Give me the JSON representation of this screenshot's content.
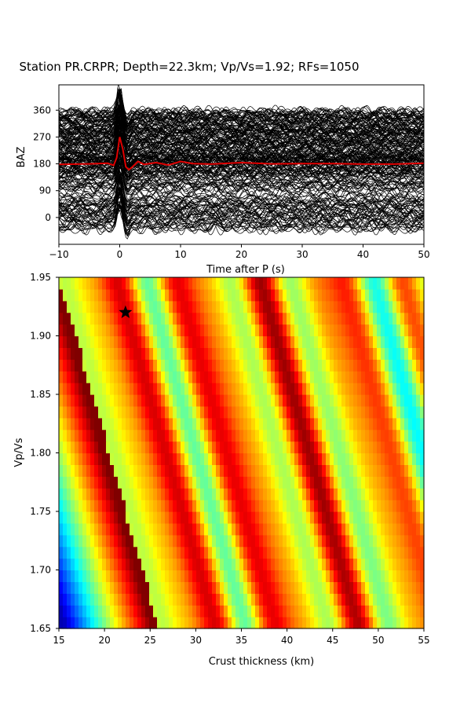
{
  "title": "Station PR.CRPR; Depth=22.3km; Vp/Vs=1.92; RFs=1050",
  "chart_data": [
    {
      "type": "line",
      "panel": "top",
      "xlabel": "Time after P (s)",
      "ylabel": "BAZ",
      "xlim": [
        -10,
        50
      ],
      "ylim": [
        -90,
        445
      ],
      "xticks": [
        "−10",
        "0",
        "10",
        "20",
        "30",
        "40",
        "50"
      ],
      "xtick_values": [
        -10,
        0,
        10,
        20,
        30,
        40,
        50
      ],
      "yticks": [
        "0",
        "90",
        "180",
        "270",
        "360"
      ],
      "ytick_values": [
        0,
        90,
        180,
        270,
        360
      ],
      "trace_count": 1050,
      "trace_color": "#000000",
      "stack_color": "#e00000",
      "stack_baseline": 180,
      "stack": {
        "x": [
          -10,
          -5,
          -2,
          -1,
          -0.5,
          0,
          0.5,
          1,
          1.5,
          2,
          3,
          4,
          6,
          8,
          10,
          12,
          15,
          20,
          25,
          30,
          35,
          40,
          45,
          50
        ],
        "y": [
          178,
          180,
          182,
          175,
          200,
          270,
          230,
          170,
          160,
          168,
          188,
          178,
          184,
          176,
          188,
          181,
          179,
          184,
          180,
          181,
          181,
          179,
          179,
          182
        ]
      }
    },
    {
      "type": "heatmap",
      "panel": "bottom",
      "xlabel": "Crust thickness (km)",
      "ylabel": "Vp/Vs",
      "xlim": [
        15,
        55
      ],
      "ylim": [
        1.65,
        1.95
      ],
      "xticks": [
        "15",
        "20",
        "25",
        "30",
        "35",
        "40",
        "45",
        "50",
        "55"
      ],
      "xtick_values": [
        15,
        20,
        25,
        30,
        35,
        40,
        45,
        50,
        55
      ],
      "yticks": [
        "1.65",
        "1.70",
        "1.75",
        "1.80",
        "1.85",
        "1.90",
        "1.95"
      ],
      "ytick_values": [
        1.65,
        1.7,
        1.75,
        1.8,
        1.85,
        1.9,
        1.95
      ],
      "colormap": "jet",
      "best_fit": {
        "thickness": 22.3,
        "vpvs": 1.92,
        "marker": "star"
      }
    }
  ]
}
